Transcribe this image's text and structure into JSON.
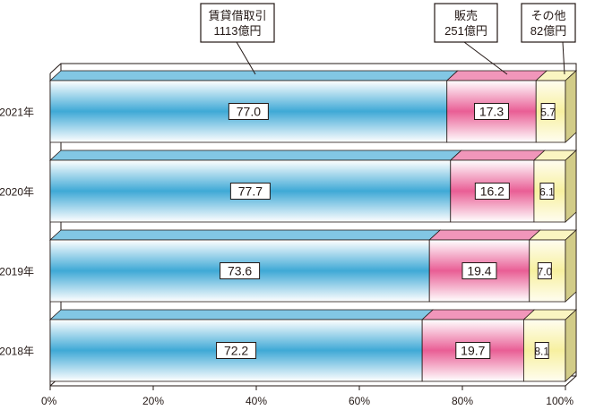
{
  "chart_data": {
    "type": "bar",
    "orientation": "horizontal",
    "stacked": true,
    "percent": true,
    "style": "3d",
    "categories": [
      "2021年",
      "2020年",
      "2019年",
      "2018年"
    ],
    "series": [
      {
        "name": "賃貸借取引",
        "values": [
          77.0,
          77.7,
          73.6,
          72.2
        ],
        "color": "#3fa9d6"
      },
      {
        "name": "販売",
        "values": [
          17.3,
          16.2,
          19.4,
          19.7
        ],
        "color": "#e95e95"
      },
      {
        "name": "その他",
        "values": [
          5.7,
          6.1,
          7.0,
          8.1
        ],
        "color": "#f7f0a0"
      }
    ],
    "callouts": [
      {
        "series": "賃貸借取引",
        "line1": "賃貸借取引",
        "line2": "1113億円"
      },
      {
        "series": "販売",
        "line1": "販売",
        "line2": "251億円"
      },
      {
        "series": "その他",
        "line1": "その他",
        "line2": "82億円"
      }
    ],
    "x_ticks": [
      "0%",
      "20%",
      "40%",
      "60%",
      "80%",
      "100%"
    ],
    "xlim": [
      0,
      100
    ],
    "grid": false,
    "legend": "none"
  }
}
